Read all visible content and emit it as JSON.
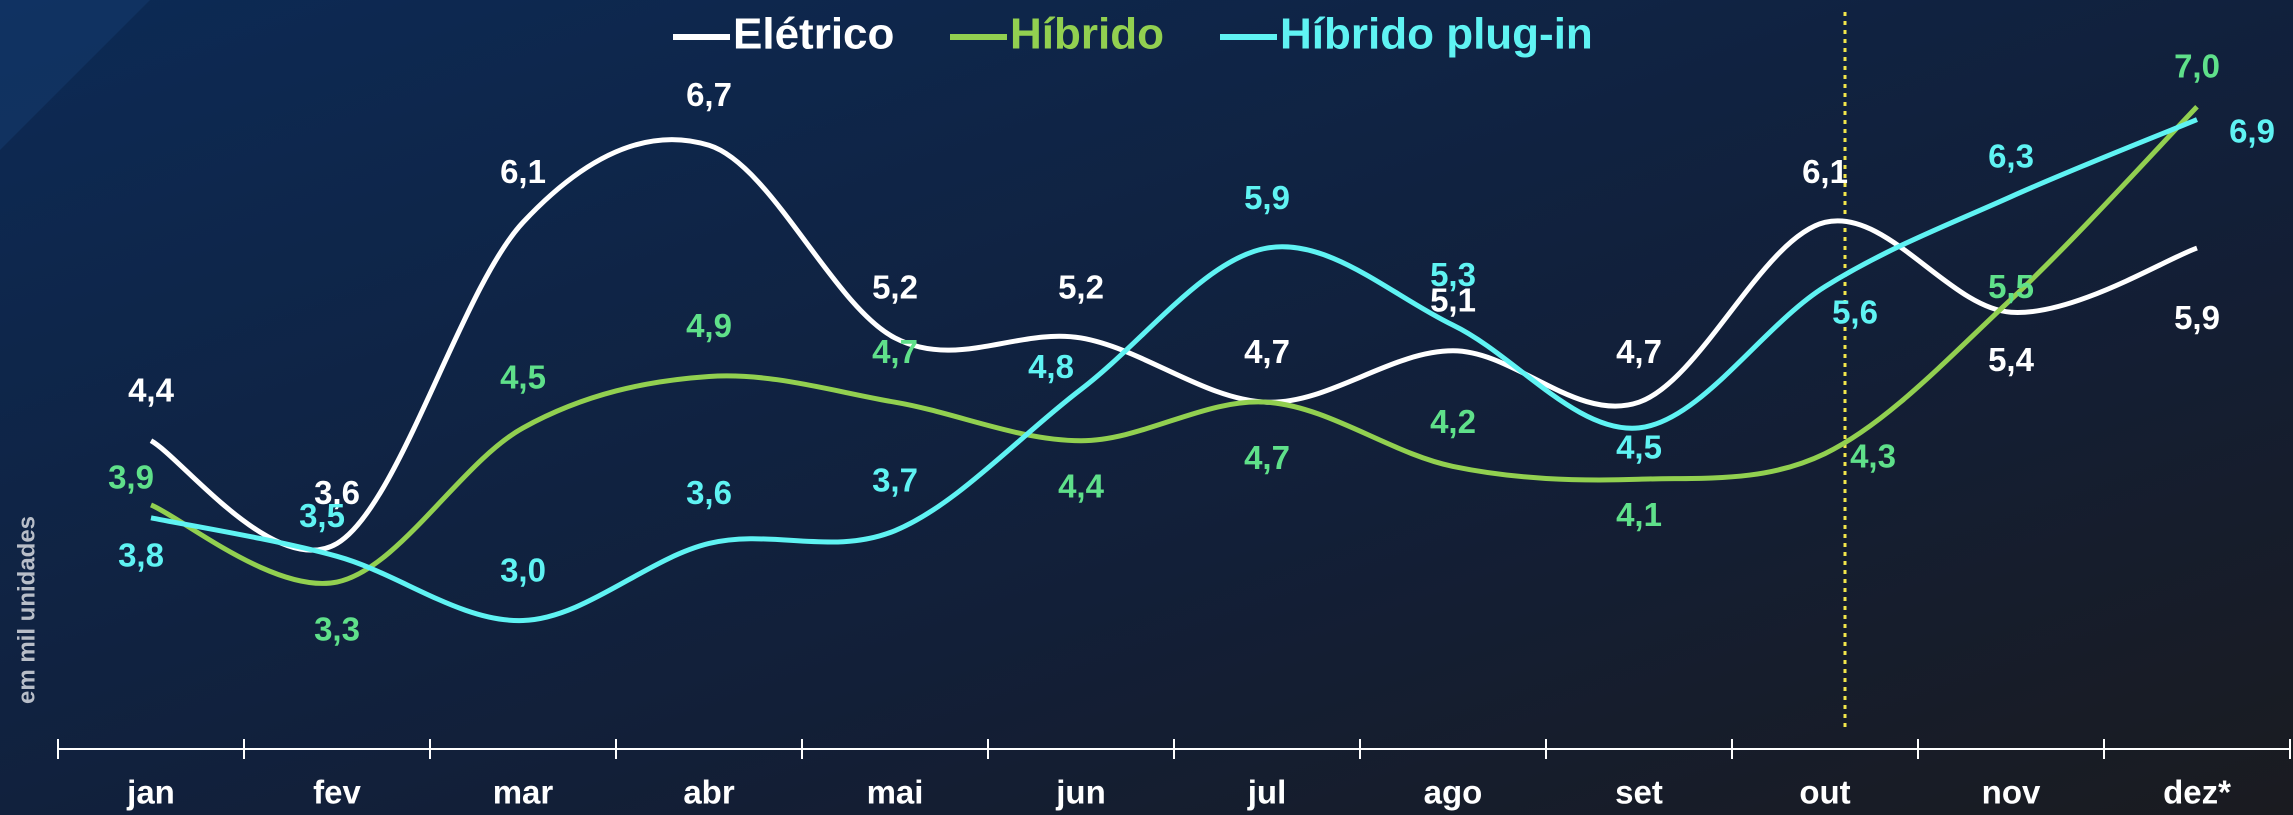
{
  "chart_data": {
    "type": "line",
    "y_axis_label": "em mil unidades",
    "categories": [
      "jan",
      "fev",
      "mar",
      "abr",
      "mai",
      "jun",
      "jul",
      "ago",
      "set",
      "out",
      "nov",
      "dez*"
    ],
    "ylim": [
      2,
      7.8
    ],
    "series": [
      {
        "name": "Elétrico",
        "color": "#ffffff",
        "values": [
          4.4,
          3.6,
          6.1,
          6.7,
          5.2,
          5.2,
          4.7,
          5.1,
          4.7,
          6.1,
          5.4,
          5.9
        ],
        "value_labels": [
          "4,4",
          "3,6",
          "6,1",
          "6,7",
          "5,2",
          "5,2",
          "4,7",
          "5,1",
          "4,7",
          "6,1",
          "5,4",
          "5,9"
        ]
      },
      {
        "name": "Híbrido",
        "color": "#92d050",
        "values": [
          3.9,
          3.3,
          4.5,
          4.9,
          4.7,
          4.4,
          4.7,
          4.2,
          4.1,
          4.3,
          5.5,
          7.0
        ],
        "value_labels": [
          "3,9",
          "3,3",
          "4,5",
          "4,9",
          "4,7",
          "4,4",
          "4,7",
          "4,2",
          "4,1",
          "4,3",
          "5,5",
          "7,0"
        ]
      },
      {
        "name": "Híbrido plug-in",
        "color": "#5ff3f3",
        "values": [
          3.8,
          3.5,
          3.0,
          3.6,
          3.7,
          4.8,
          5.9,
          5.3,
          4.5,
          5.6,
          6.3,
          6.9
        ],
        "value_labels": [
          "3,8",
          "3,5",
          "3,0",
          "3,6",
          "3,7",
          "4,8",
          "5,9",
          "5,3",
          "4,5",
          "5,6",
          "6,3",
          "6,9"
        ]
      }
    ]
  }
}
